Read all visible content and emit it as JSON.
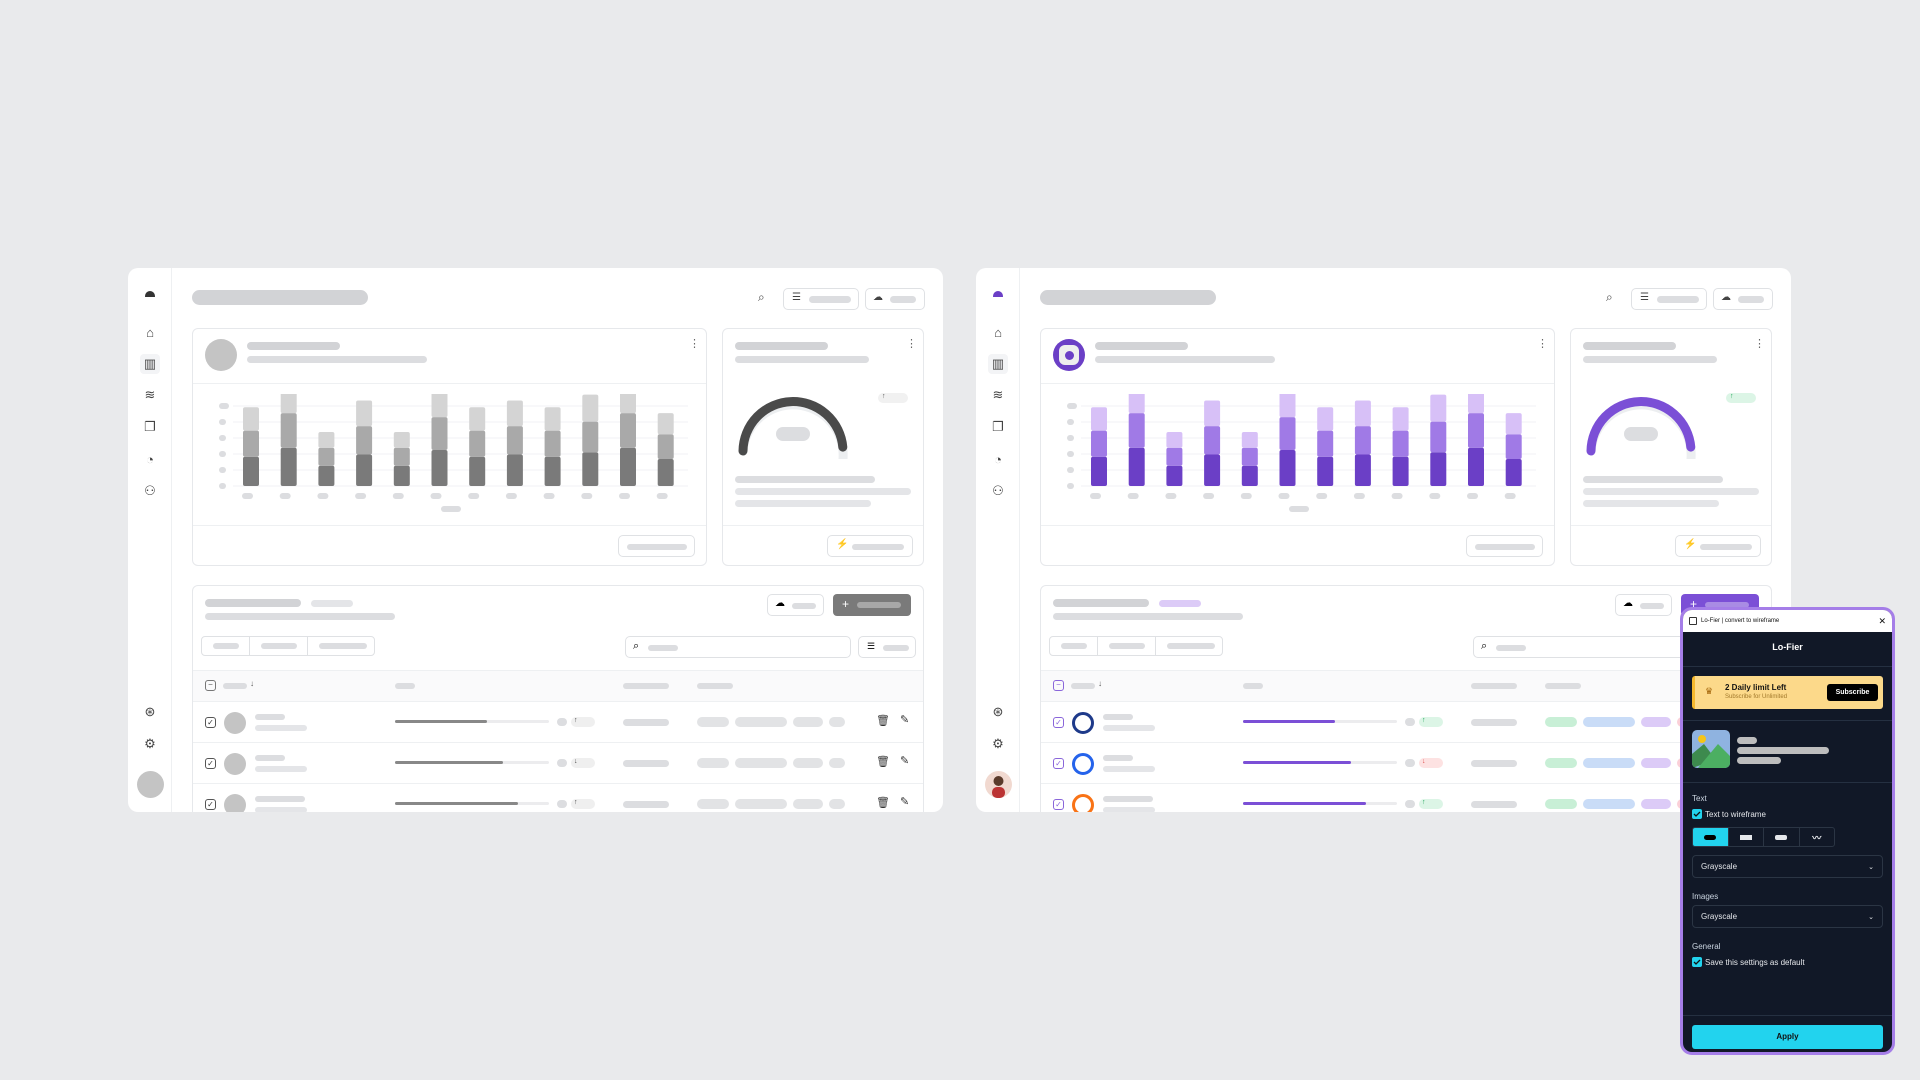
{
  "colors": {
    "background": "#e9eaec",
    "accent_purple": "#6b3fc6",
    "purple_mid": "#a07ae6",
    "purple_light": "#d7c0f7",
    "gray_dark": "#7a7a7a",
    "gray_mid": "#a9a9a9",
    "gray_light": "#d4d4d4",
    "cyan": "#22d3ee",
    "banner": "#fcd98a"
  },
  "dashboards": [
    {
      "variant": "grayscale",
      "sidebar_icons": [
        "logo-icon",
        "home-icon",
        "chart-icon",
        "layers-icon",
        "copy-check-icon",
        "pie-chart-icon",
        "users-icon",
        "support-icon",
        "gear-icon"
      ],
      "table_progress": [
        0.6,
        0.7,
        0.8
      ],
      "trend": [
        "up",
        "down",
        "up"
      ]
    },
    {
      "variant": "color",
      "sidebar_icons": [
        "logo-icon",
        "home-icon",
        "chart-icon",
        "layers-icon",
        "copy-check-icon",
        "pie-chart-icon",
        "users-icon",
        "support-icon",
        "gear-icon"
      ],
      "table_progress": [
        0.6,
        0.7,
        0.8
      ],
      "trend": [
        "up",
        "down",
        "up"
      ]
    }
  ],
  "chart_data": {
    "type": "bar",
    "stacked": true,
    "categories": [
      "",
      "",
      "",
      "",
      "",
      "",
      "",
      "",
      "",
      "",
      "",
      ""
    ],
    "series": [
      {
        "values": [
          65,
          85,
          45,
          70,
          45,
          80,
          65,
          70,
          65,
          75,
          85,
          60
        ]
      },
      {
        "values": [
          58,
          77,
          40,
          63,
          40,
          73,
          58,
          63,
          58,
          68,
          77,
          55
        ]
      },
      {
        "values": [
          52,
          68,
          35,
          57,
          35,
          64,
          52,
          57,
          52,
          60,
          68,
          47
        ]
      }
    ],
    "ylim": [
      0,
      240
    ],
    "grid": true
  },
  "gauge_fraction": 0.75,
  "plugin": {
    "window_title": "Lo-Fier | convert to wireframe",
    "title": "Lo-Fier",
    "banner_title": "2 Daily limit Left",
    "banner_subtitle": "Subscribe for Unlimited",
    "subscribe_label": "Subscribe",
    "text_section": "Text",
    "text_to_wireframe": "Text to wireframe",
    "text_style_selected": 0,
    "text_color_select": "Grayscale",
    "images_section": "Images",
    "images_color_select": "Grayscale",
    "general_section": "General",
    "save_default": "Save this settings as default",
    "apply_label": "Apply"
  }
}
